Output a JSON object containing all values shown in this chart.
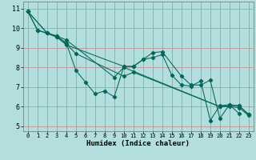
{
  "xlabel": "Humidex (Indice chaleur)",
  "background_color": "#b2dede",
  "grid_color": "#c89090",
  "line_color": "#006858",
  "xlim": [
    -0.5,
    23.5
  ],
  "ylim": [
    4.75,
    11.35
  ],
  "xticks": [
    0,
    1,
    2,
    3,
    4,
    5,
    6,
    7,
    8,
    9,
    10,
    11,
    12,
    13,
    14,
    15,
    16,
    17,
    18,
    19,
    20,
    21,
    22,
    23
  ],
  "yticks": [
    5,
    6,
    7,
    8,
    9,
    10,
    11
  ],
  "series": [
    {
      "x": [
        0,
        1,
        2,
        3,
        4,
        5,
        6,
        7,
        8,
        9,
        10,
        11,
        12,
        13,
        14,
        15,
        16,
        17,
        18,
        19,
        20,
        21,
        22
      ],
      "y": [
        10.85,
        9.9,
        9.75,
        9.6,
        9.25,
        7.85,
        7.25,
        6.65,
        6.8,
        6.5,
        8.05,
        8.05,
        8.4,
        8.5,
        8.65,
        7.6,
        7.1,
        7.05,
        7.3,
        5.3,
        6.05,
        6.1,
        5.65
      ]
    },
    {
      "x": [
        0,
        2,
        3,
        4,
        10,
        11,
        12,
        13,
        14,
        16,
        17,
        18,
        19,
        20,
        21,
        22,
        23
      ],
      "y": [
        10.85,
        9.75,
        9.55,
        9.15,
        8.05,
        8.05,
        8.4,
        8.75,
        8.8,
        7.55,
        7.1,
        7.1,
        7.35,
        5.4,
        6.1,
        6.05,
        5.6
      ]
    },
    {
      "x": [
        0,
        1,
        3,
        4,
        5,
        10,
        11,
        20,
        21,
        22,
        23
      ],
      "y": [
        10.85,
        9.9,
        9.55,
        9.2,
        8.7,
        7.55,
        7.75,
        6.0,
        6.05,
        6.05,
        5.6
      ]
    },
    {
      "x": [
        0,
        2,
        3,
        4,
        9,
        10,
        20,
        21,
        22,
        23
      ],
      "y": [
        10.85,
        9.75,
        9.6,
        9.4,
        7.5,
        8.0,
        6.0,
        6.0,
        5.95,
        5.55
      ]
    }
  ]
}
